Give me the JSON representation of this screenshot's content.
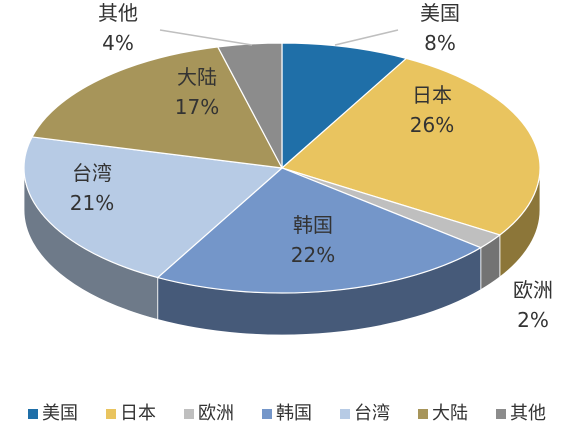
{
  "chart_data": {
    "type": "pie",
    "style": "3d-exploded-pie",
    "legend_position": "bottom",
    "slices": [
      {
        "name": "美国",
        "value": 8,
        "label": "8%",
        "color": "#1F6FA8"
      },
      {
        "name": "日本",
        "value": 26,
        "label": "26%",
        "color": "#E9C45F"
      },
      {
        "name": "欧洲",
        "value": 2,
        "label": "2%",
        "color": "#BFBFBF"
      },
      {
        "name": "韩国",
        "value": 22,
        "label": "22%",
        "color": "#7496C9"
      },
      {
        "name": "台湾",
        "value": 21,
        "label": "21%",
        "color": "#B7CBE5"
      },
      {
        "name": "大陆",
        "value": 17,
        "label": "17%",
        "color": "#A7955A"
      },
      {
        "name": "其他",
        "value": 4,
        "label": "4%",
        "color": "#8C8C8C"
      }
    ]
  }
}
